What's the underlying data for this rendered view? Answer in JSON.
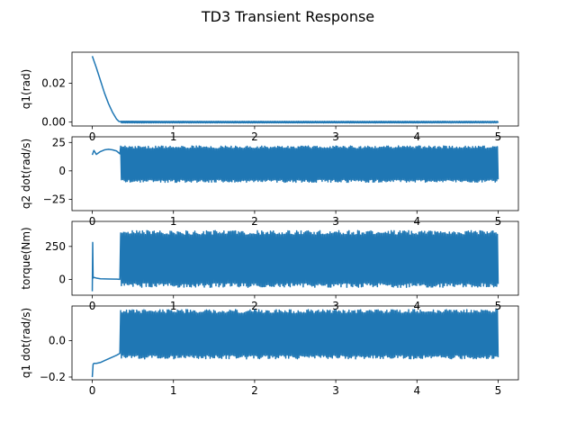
{
  "figure": {
    "title": "TD3 Transient Response",
    "line_color": "#1f77b4"
  },
  "chart_data": [
    {
      "type": "line",
      "ylabel": "q1(rad)",
      "xlim": [
        -0.25,
        5.25
      ],
      "ylim": [
        -0.002,
        0.036
      ],
      "xticks": [
        0,
        1,
        2,
        3,
        4,
        5
      ],
      "xtick_labels": [
        "0",
        "1",
        "2",
        "3",
        "4",
        "5"
      ],
      "yticks": [
        0.0,
        0.02
      ],
      "ytick_labels": [
        "0.00",
        "0.02"
      ],
      "series": [
        {
          "x": [
            0.0,
            0.05,
            0.1,
            0.15,
            0.2,
            0.25,
            0.3,
            0.33,
            0.35,
            0.5,
            1.0,
            2.0,
            3.0,
            4.0,
            5.0
          ],
          "y": [
            0.034,
            0.028,
            0.0215,
            0.015,
            0.0095,
            0.005,
            0.0015,
            0.0003,
            0.0003,
            0.0002,
            0.0,
            -0.0002,
            -0.0002,
            -0.0002,
            -0.0001
          ],
          "oscillation": {
            "x_start": 0.35,
            "x_end": 5.0,
            "low": -0.0004,
            "high": 0.0004
          }
        }
      ]
    },
    {
      "type": "line",
      "ylabel": "q2 dot(rad/s)",
      "xlim": [
        -0.25,
        5.25
      ],
      "ylim": [
        -35,
        30
      ],
      "xticks": [
        0,
        1,
        2,
        3,
        4,
        5
      ],
      "xtick_labels": [
        "0",
        "1",
        "2",
        "3",
        "4",
        "5"
      ],
      "yticks": [
        -25,
        0,
        25
      ],
      "ytick_labels": [
        "−25",
        "0",
        "25"
      ],
      "series": [
        {
          "x": [
            0.0,
            0.02,
            0.05,
            0.1,
            0.15,
            0.2,
            0.25,
            0.3,
            0.34
          ],
          "y": [
            14,
            18,
            14.5,
            17,
            18.5,
            19,
            18.5,
            17.5,
            15
          ],
          "oscillation": {
            "x_start": 0.35,
            "x_end": 5.0,
            "low": -10,
            "high": 22
          }
        }
      ]
    },
    {
      "type": "line",
      "ylabel": "torque(Nm)",
      "xlim": [
        -0.25,
        5.25
      ],
      "ylim": [
        -120,
        440
      ],
      "xticks": [
        0,
        1,
        2,
        3,
        4,
        5
      ],
      "xtick_labels": [
        "0",
        "1",
        "2",
        "3",
        "4",
        "5"
      ],
      "yticks": [
        0,
        250
      ],
      "ytick_labels": [
        "0",
        "250"
      ],
      "series": [
        {
          "x": [
            0.0,
            0.005,
            0.01,
            0.02,
            0.05,
            0.1,
            0.2,
            0.3,
            0.34
          ],
          "y": [
            -90,
            280,
            10,
            15,
            10,
            5,
            3,
            2,
            0
          ],
          "oscillation": {
            "x_start": 0.35,
            "x_end": 5.0,
            "low": -60,
            "high": 370
          }
        }
      ]
    },
    {
      "type": "line",
      "ylabel": "q1 dot(rad/s)",
      "xlim": [
        -0.25,
        5.25
      ],
      "ylim": [
        -0.215,
        0.19
      ],
      "xticks": [
        0,
        1,
        2,
        3,
        4,
        5
      ],
      "xtick_labels": [
        "0",
        "1",
        "2",
        "3",
        "4",
        "5"
      ],
      "yticks": [
        -0.2,
        0.0
      ],
      "ytick_labels": [
        "−0.2",
        "0.0"
      ],
      "series": [
        {
          "x": [
            0.0,
            0.01,
            0.02,
            0.05,
            0.1,
            0.15,
            0.2,
            0.25,
            0.3,
            0.34
          ],
          "y": [
            -0.2,
            -0.13,
            -0.125,
            -0.125,
            -0.12,
            -0.11,
            -0.1,
            -0.09,
            -0.08,
            -0.07
          ],
          "oscillation": {
            "x_start": 0.35,
            "x_end": 5.0,
            "low": -0.1,
            "high": 0.17
          }
        }
      ]
    }
  ]
}
